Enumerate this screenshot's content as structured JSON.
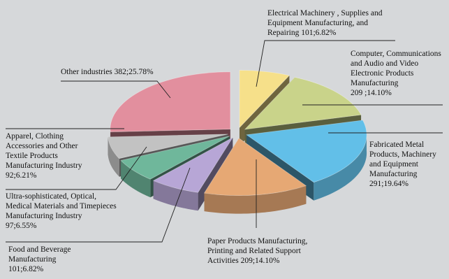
{
  "chart_data": {
    "type": "pie",
    "style": "3d-exploded",
    "slices": [
      {
        "label_lines": [
          "Electrical Machinery , Supplies and",
          "Equipment Manufacturing, and",
          "Repairing 101;6.82%"
        ],
        "value": 101,
        "percent": 6.82,
        "color": "#f6e08a"
      },
      {
        "label_lines": [
          "Computer, Communications",
          "and Audio and Video",
          "Electronic Products",
          "Manufacturing",
          "209 ;14.10%"
        ],
        "value": 209,
        "percent": 14.1,
        "color": "#c9d38a"
      },
      {
        "label_lines": [
          "Fabricated Metal",
          "Products, Machinery",
          "and Equipment",
          "Manufacturing",
          "291;19.64%"
        ],
        "value": 291,
        "percent": 19.64,
        "color": "#62bfe8"
      },
      {
        "label_lines": [
          "Paper Products Manufacturing,",
          "Printing and Related Support",
          "Activities 209;14.10%"
        ],
        "value": 209,
        "percent": 14.1,
        "color": "#e6a874"
      },
      {
        "label_lines": [
          "Food and Beverage",
          "Manufacturing",
          "101;6.82%"
        ],
        "value": 101,
        "percent": 6.82,
        "color": "#b7a6d6"
      },
      {
        "label_lines": [
          "Ultra-sophisticated, Optical,",
          "Medical Materials and Timepieces",
          "Manufacturing Industry",
          "97;6.55%"
        ],
        "value": 97,
        "percent": 6.55,
        "color": "#6fb79b"
      },
      {
        "label_lines": [
          "Apparel, Clothing",
          "Accessories and Other",
          "Textile Products",
          "Manufacturing Industry",
          "92;6.21%"
        ],
        "value": 92,
        "percent": 6.21,
        "color": "#c2c2c2"
      },
      {
        "label_lines": [
          "Other industries 382;25.78%"
        ],
        "value": 382,
        "percent": 25.78,
        "color": "#e28f9e"
      }
    ]
  }
}
